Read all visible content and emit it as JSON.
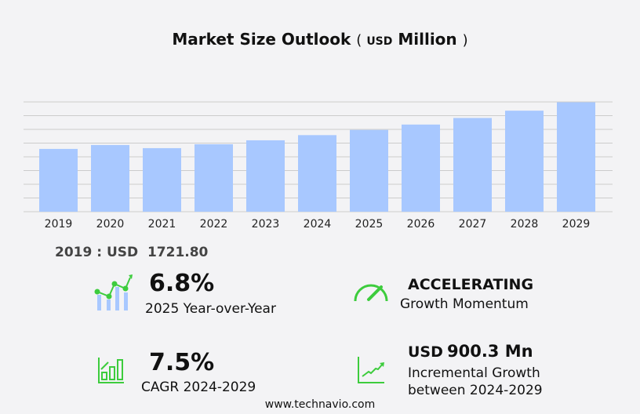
{
  "title": {
    "main": "Market Size Outlook",
    "open": "(",
    "unit": "USD",
    "unit_word": "Million",
    "close": ")"
  },
  "chart_data": {
    "type": "bar",
    "title": "Market Size Outlook (USD Million)",
    "categories": [
      "2019",
      "2020",
      "2021",
      "2022",
      "2023",
      "2024",
      "2025",
      "2026",
      "2027",
      "2028",
      "2029"
    ],
    "values": [
      1721.8,
      1829,
      1743,
      1850,
      1958,
      2100,
      2243,
      2390,
      2570,
      2770,
      3000.3
    ],
    "ylim": [
      0,
      3010
    ],
    "grid": true,
    "bar_color": "#a8c8ff"
  },
  "base_year": {
    "label": "2019 : USD",
    "value": "1721.80"
  },
  "kpis": {
    "yoy": {
      "value": "6.8%",
      "label": "2025 Year-over-Year",
      "icon": "chart-growth-icon"
    },
    "momentum": {
      "value": "ACCELERATING",
      "label": "Growth Momentum",
      "icon": "speedometer-icon"
    },
    "cagr": {
      "value": "7.5%",
      "label": "CAGR 2024-2029",
      "icon": "bar-chart-up-icon"
    },
    "incremental": {
      "prefix": "USD",
      "value": "900.3 Mn",
      "label1": "Incremental Growth",
      "label2": "between 2024-2029",
      "icon": "line-chart-up-icon"
    }
  },
  "accent": "#3dcc3d",
  "footer": "www.technavio.com"
}
